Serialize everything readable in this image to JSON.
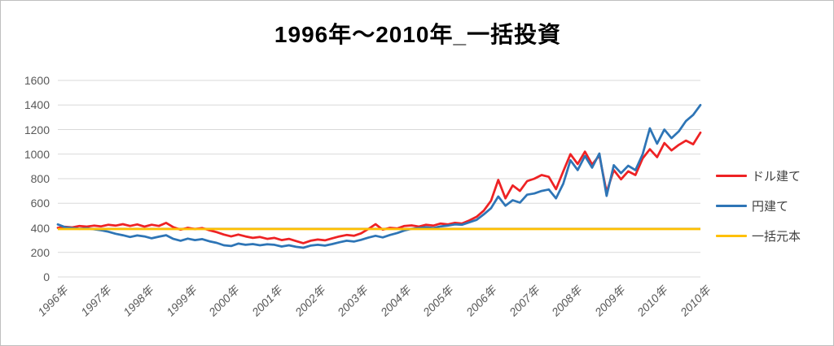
{
  "title": "1996年～2010年_一括投資",
  "legend": [
    {
      "label": "ドル建て",
      "color": "#ee2224"
    },
    {
      "label": "円建て",
      "color": "#2e75b6"
    },
    {
      "label": "一括元本",
      "color": "#ffc000"
    }
  ],
  "colors": {
    "gridline": "#d9d9d9",
    "axis_text": "#595959",
    "legend_text": "#404040",
    "border": "#bfbfbf",
    "background": "#ffffff"
  },
  "chart_data": {
    "type": "line",
    "title": "1996年～2010年_一括投資",
    "grid": "horizontal",
    "legend_position": "right",
    "x_axis": {
      "tick_labels": [
        "1996年",
        "1997年",
        "1998年",
        "1999年",
        "2000年",
        "2001年",
        "2002年",
        "2003年",
        "2004年",
        "2005年",
        "2006年",
        "2007年",
        "2008年",
        "2009年",
        "2010年",
        "2010年"
      ],
      "range_years": [
        1996,
        2010.92
      ]
    },
    "y_axis": {
      "min": 0,
      "max": 1600,
      "step": 200,
      "tick_labels": [
        "0",
        "200",
        "400",
        "600",
        "800",
        "1000",
        "1200",
        "1400",
        "1600"
      ]
    },
    "x_start": 1996.0,
    "x_step_years": 0.16667,
    "series": [
      {
        "name": "ドル建て",
        "color": "#ee2224",
        "values": [
          400,
          408,
          403,
          415,
          410,
          418,
          412,
          425,
          418,
          430,
          415,
          428,
          410,
          425,
          415,
          440,
          405,
          385,
          400,
          390,
          398,
          380,
          365,
          345,
          330,
          345,
          330,
          318,
          325,
          310,
          318,
          300,
          310,
          292,
          275,
          295,
          305,
          298,
          315,
          330,
          342,
          335,
          355,
          390,
          430,
          385,
          400,
          395,
          415,
          420,
          410,
          425,
          418,
          435,
          428,
          440,
          435,
          460,
          490,
          540,
          620,
          790,
          640,
          745,
          700,
          780,
          800,
          830,
          815,
          715,
          860,
          1000,
          920,
          1020,
          915,
          990,
          690,
          870,
          795,
          860,
          830,
          965,
          1040,
          975,
          1090,
          1030,
          1075,
          1110,
          1080,
          1175
        ]
      },
      {
        "name": "円建て",
        "color": "#2e75b6",
        "values": [
          428,
          405,
          398,
          392,
          396,
          388,
          380,
          368,
          352,
          340,
          325,
          338,
          330,
          315,
          328,
          340,
          310,
          295,
          312,
          300,
          308,
          290,
          278,
          258,
          252,
          272,
          262,
          268,
          258,
          266,
          262,
          248,
          258,
          245,
          238,
          255,
          262,
          255,
          268,
          282,
          295,
          288,
          302,
          320,
          335,
          322,
          342,
          358,
          378,
          392,
          398,
          405,
          398,
          412,
          418,
          428,
          425,
          445,
          465,
          510,
          560,
          655,
          580,
          625,
          605,
          670,
          680,
          700,
          712,
          640,
          760,
          950,
          870,
          985,
          890,
          1005,
          660,
          910,
          845,
          905,
          870,
          1000,
          1210,
          1085,
          1200,
          1130,
          1185,
          1270,
          1320,
          1400
        ]
      },
      {
        "name": "一括元本",
        "color": "#ffc000",
        "constant": 390
      }
    ]
  }
}
